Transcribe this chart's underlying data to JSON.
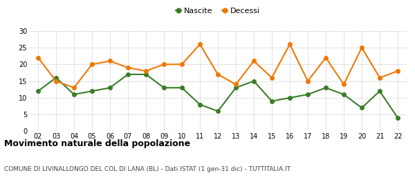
{
  "years": [
    "02",
    "03",
    "04",
    "05",
    "06",
    "07",
    "08",
    "09",
    "10",
    "11",
    "12",
    "13",
    "14",
    "15",
    "16",
    "17",
    "18",
    "19",
    "20",
    "21",
    "22"
  ],
  "nascite": [
    12,
    16,
    11,
    12,
    13,
    17,
    17,
    13,
    13,
    8,
    6,
    13,
    15,
    9,
    10,
    11,
    13,
    11,
    7,
    12,
    4
  ],
  "decessi": [
    22,
    15,
    13,
    20,
    21,
    19,
    18,
    20,
    20,
    26,
    17,
    14,
    21,
    16,
    26,
    15,
    22,
    14,
    25,
    16,
    18
  ],
  "nascite_color": "#3a7d27",
  "decessi_color": "#f07800",
  "bg_color": "#ffffff",
  "grid_color": "#dddddd",
  "title": "Movimento naturale della popolazione",
  "subtitle": "COMUNE DI LIVINALLONGO DEL COL DI LANA (BL) - Dati ISTAT (1 gen-31 dic) - TUTTITALIA.IT",
  "ylim": [
    0,
    30
  ],
  "yticks": [
    0,
    5,
    10,
    15,
    20,
    25,
    30
  ],
  "legend_labels": [
    "Nascite",
    "Decessi"
  ],
  "marker_size": 4,
  "line_width": 1.5,
  "title_fontsize": 9,
  "subtitle_fontsize": 6.5,
  "tick_fontsize": 7,
  "legend_fontsize": 8
}
